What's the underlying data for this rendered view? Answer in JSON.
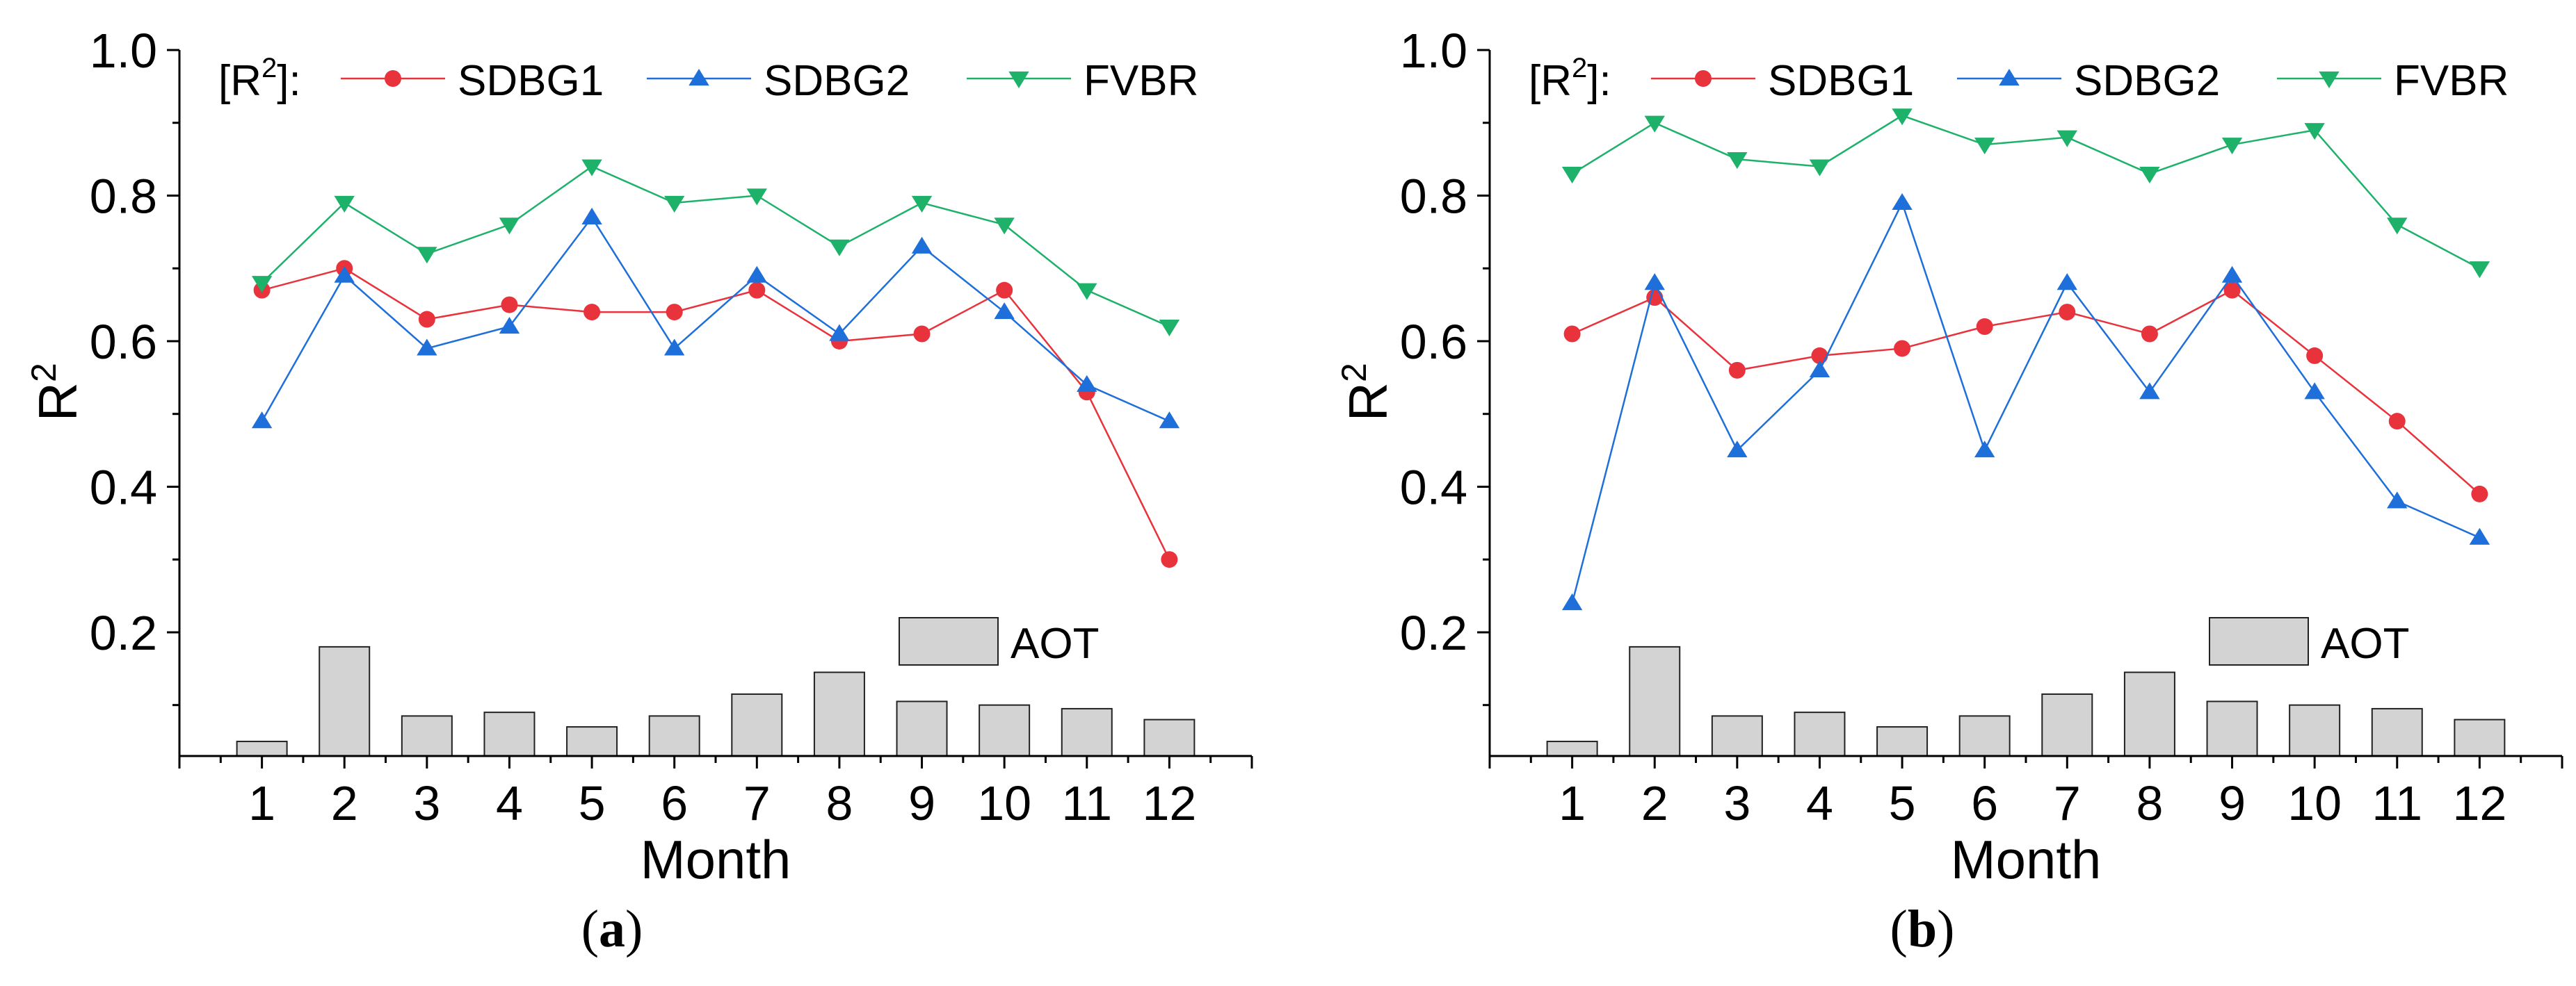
{
  "chart_data": [
    {
      "type": "line",
      "panel_label": "a",
      "xlabel": "Month",
      "ylabel": "R",
      "ylabel_sup": "2",
      "x": [
        1,
        2,
        3,
        4,
        5,
        6,
        7,
        8,
        9,
        10,
        11,
        12
      ],
      "x_tick_labels": [
        "1",
        "2",
        "3",
        "4",
        "5",
        "6",
        "7",
        "8",
        "9",
        "10",
        "11",
        "12"
      ],
      "xlim": [
        0,
        13
      ],
      "ylim": [
        0.03,
        1.0
      ],
      "y_ticks": [
        0.2,
        0.4,
        0.6,
        0.8,
        1.0
      ],
      "y_tick_labels": [
        "0.2",
        "0.4",
        "0.6",
        "0.8",
        "1.0"
      ],
      "legend_prefix": "[R",
      "legend_prefix_sup": "2",
      "legend_prefix_end": "]:",
      "legend_position": "top",
      "series": [
        {
          "name": "SDBG1",
          "color": "#e8323c",
          "marker": "circle",
          "values": [
            0.67,
            0.7,
            0.63,
            0.65,
            0.64,
            0.64,
            0.67,
            0.6,
            0.61,
            0.67,
            0.53,
            0.3
          ]
        },
        {
          "name": "SDBG2",
          "color": "#1e6fd9",
          "marker": "triangle-up",
          "values": [
            0.49,
            0.69,
            0.59,
            0.62,
            0.77,
            0.59,
            0.69,
            0.61,
            0.73,
            0.64,
            0.54,
            0.49
          ]
        },
        {
          "name": "FVBR",
          "color": "#1db16a",
          "marker": "triangle-down",
          "values": [
            0.68,
            0.79,
            0.72,
            0.76,
            0.84,
            0.79,
            0.8,
            0.73,
            0.79,
            0.76,
            0.67,
            0.62
          ]
        }
      ],
      "bars": {
        "name": "AOT",
        "color": "#d3d3d3",
        "values": [
          0.05,
          0.18,
          0.085,
          0.09,
          0.07,
          0.085,
          0.115,
          0.145,
          0.105,
          0.1,
          0.095,
          0.08
        ]
      }
    },
    {
      "type": "line",
      "panel_label": "b",
      "xlabel": "Month",
      "ylabel": "R",
      "ylabel_sup": "2",
      "x": [
        1,
        2,
        3,
        4,
        5,
        6,
        7,
        8,
        9,
        10,
        11,
        12
      ],
      "x_tick_labels": [
        "1",
        "2",
        "3",
        "4",
        "5",
        "6",
        "7",
        "8",
        "9",
        "10",
        "11",
        "12"
      ],
      "xlim": [
        0,
        13
      ],
      "ylim": [
        0.03,
        1.0
      ],
      "y_ticks": [
        0.2,
        0.4,
        0.6,
        0.8,
        1.0
      ],
      "y_tick_labels": [
        "0.2",
        "0.4",
        "0.6",
        "0.8",
        "1.0"
      ],
      "legend_prefix": "[R",
      "legend_prefix_sup": "2",
      "legend_prefix_end": "]:",
      "legend_position": "top",
      "series": [
        {
          "name": "SDBG1",
          "color": "#e8323c",
          "marker": "circle",
          "values": [
            0.61,
            0.66,
            0.56,
            0.58,
            0.59,
            0.62,
            0.64,
            0.61,
            0.67,
            0.58,
            0.49,
            0.39
          ]
        },
        {
          "name": "SDBG2",
          "color": "#1e6fd9",
          "marker": "triangle-up",
          "values": [
            0.24,
            0.68,
            0.45,
            0.56,
            0.79,
            0.45,
            0.68,
            0.53,
            0.69,
            0.53,
            0.38,
            0.33
          ]
        },
        {
          "name": "FVBR",
          "color": "#1db16a",
          "marker": "triangle-down",
          "values": [
            0.83,
            0.9,
            0.85,
            0.84,
            0.91,
            0.87,
            0.88,
            0.83,
            0.87,
            0.89,
            0.76,
            0.7
          ]
        }
      ],
      "bars": {
        "name": "AOT",
        "color": "#d3d3d3",
        "values": [
          0.05,
          0.18,
          0.085,
          0.09,
          0.07,
          0.085,
          0.115,
          0.145,
          0.105,
          0.1,
          0.095,
          0.08
        ]
      }
    }
  ]
}
